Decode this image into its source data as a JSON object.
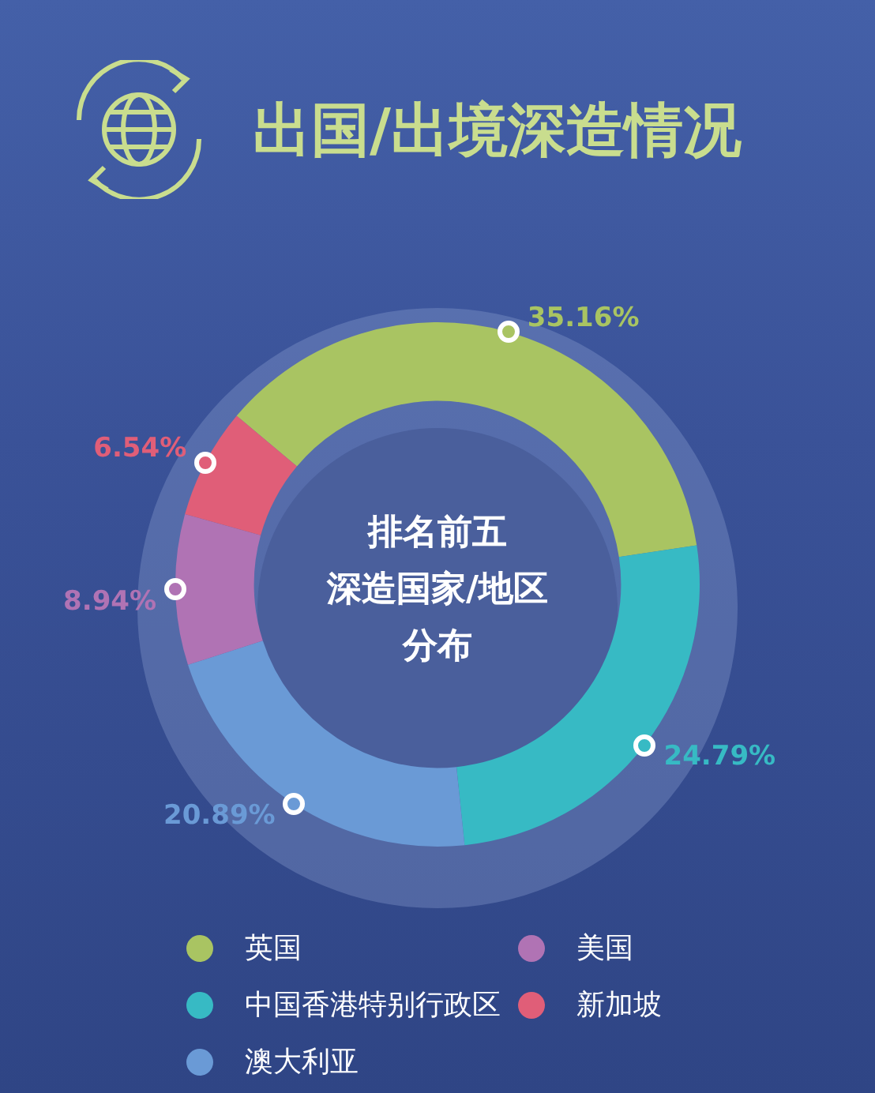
{
  "chart_data": {
    "type": "donut",
    "title": "出国/出境深造情况",
    "annotations": [
      "排名前五",
      "深造国家/地区",
      "分布"
    ],
    "categories": [
      "英国",
      "中国香港特别行政区",
      "澳大利亚",
      "美国",
      "新加坡"
    ],
    "values": [
      35.16,
      24.79,
      20.89,
      8.94,
      6.54
    ],
    "value_labels": [
      "35.16%",
      "24.79%",
      "20.89%",
      "8.94%",
      "6.54%"
    ],
    "colors": [
      "#a9c462",
      "#37bac4",
      "#6a9ad6",
      "#b073b4",
      "#e05e78"
    ],
    "legend": "bottom"
  }
}
